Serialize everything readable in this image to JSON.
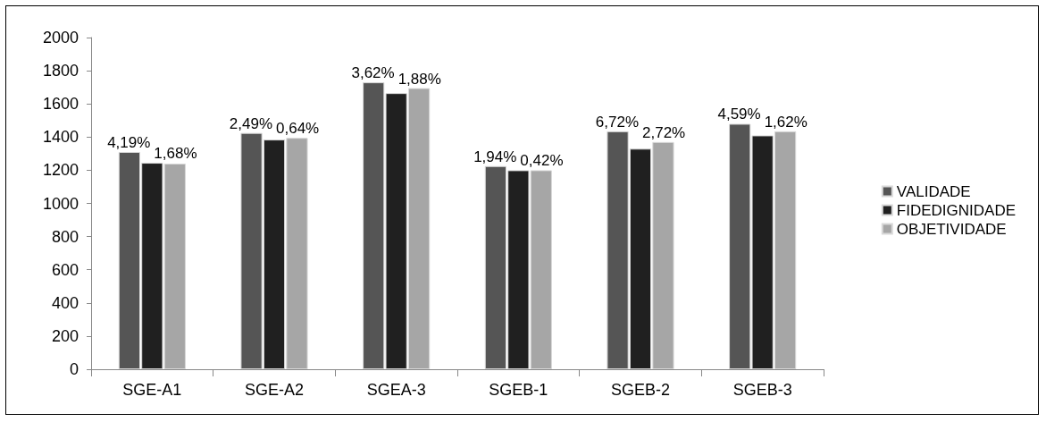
{
  "chart_data": {
    "type": "bar",
    "categories": [
      "SGE-A1",
      "SGE-A2",
      "SGEA-3",
      "SGEB-1",
      "SGEB-2",
      "SGEB-3"
    ],
    "series": [
      {
        "name": "VALIDADE",
        "color": "#555555",
        "values": [
          1310,
          1425,
          1730,
          1225,
          1435,
          1480
        ]
      },
      {
        "name": "FIDEDIGNIDADE",
        "color": "#202020",
        "values": [
          1245,
          1385,
          1665,
          1200,
          1330,
          1410
        ]
      },
      {
        "name": "OBJETIVIDADE",
        "color": "#a6a6a6",
        "values": [
          1240,
          1395,
          1695,
          1200,
          1370,
          1435
        ]
      }
    ],
    "annotations": [
      "4,19%",
      "1,68%",
      "2,49%",
      "0,64%",
      "3,62%",
      "1,88%",
      "1,94%",
      "0,42%",
      "6,72%",
      "2,72%",
      "4,59%",
      "1,62%"
    ],
    "ylim": [
      0,
      2000
    ],
    "yticks": [
      0,
      200,
      400,
      600,
      800,
      1000,
      1200,
      1400,
      1600,
      1800,
      2000
    ],
    "grid": false,
    "legend": "right"
  }
}
